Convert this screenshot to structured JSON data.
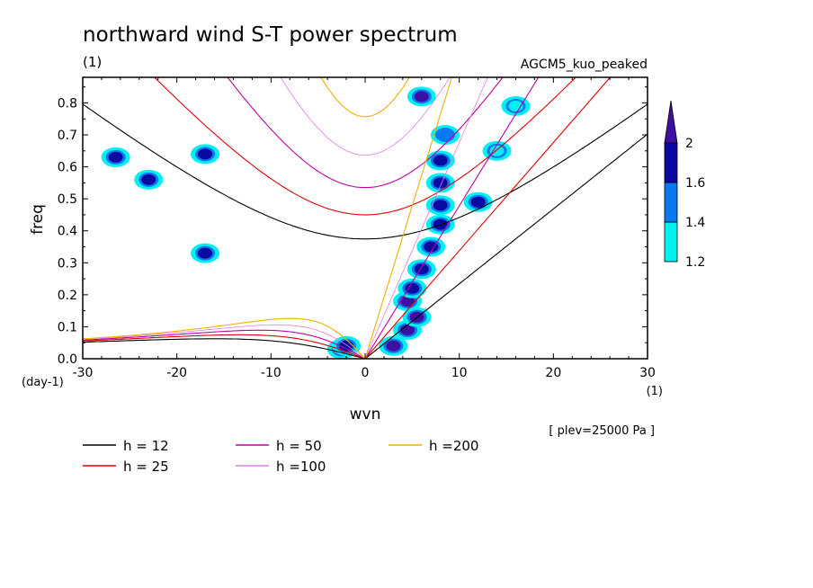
{
  "chart_data": {
    "type": "heatmap",
    "title": "northward wind S-T power spectrum",
    "title_unit": "(1)",
    "model_label": "AGCM5_kuo_peaked",
    "level_note": "[ plev=25000 Pa ]",
    "xlabel": "wvn",
    "ylabel": "freq",
    "x_unit": "(1)",
    "y_unit": "(day-1)",
    "xlim": [
      -30,
      30
    ],
    "ylim": [
      0,
      0.88
    ],
    "x_ticks": [
      -30,
      -20,
      -10,
      0,
      10,
      20,
      30
    ],
    "x_tick_labels": [
      "-30",
      "-20",
      "-10",
      "0",
      "10",
      "20",
      "30"
    ],
    "y_ticks": [
      0,
      0.1,
      0.2,
      0.3,
      0.4,
      0.5,
      0.6,
      0.7,
      0.8
    ],
    "y_tick_labels": [
      "0.0",
      "0.1",
      "0.2",
      "0.3",
      "0.4",
      "0.5",
      "0.6",
      "0.7",
      "0.8"
    ],
    "colorbar": {
      "levels": [
        1.2,
        1.4,
        1.6,
        2
      ],
      "labels": [
        "1.2",
        "1.4",
        "1.6",
        "2"
      ],
      "colors": [
        "#00f0f0",
        "#0a78f0",
        "#0a0aa0",
        "#3c10a0"
      ]
    },
    "dispersion_curves": [
      {
        "label": "h = 12",
        "h": 12,
        "color": "#000000"
      },
      {
        "label": "h = 25",
        "h": 25,
        "color": "#e00000"
      },
      {
        "label": "h = 50",
        "h": 50,
        "color": "#c000a0"
      },
      {
        "label": "h =100",
        "h": 100,
        "color": "#e080e0"
      },
      {
        "label": "h =200",
        "h": 200,
        "color": "#f0b000"
      }
    ],
    "power_regions": [
      {
        "wvn": -2.5,
        "freq": 0.03,
        "level": 2
      },
      {
        "wvn": -2.0,
        "freq": 0.04,
        "level": 1.6
      },
      {
        "wvn": 3.0,
        "freq": 0.04,
        "level": 2
      },
      {
        "wvn": 4.5,
        "freq": 0.09,
        "level": 2
      },
      {
        "wvn": 5.5,
        "freq": 0.13,
        "level": 2
      },
      {
        "wvn": 4.5,
        "freq": 0.18,
        "level": 2
      },
      {
        "wvn": 5.0,
        "freq": 0.22,
        "level": 1.6
      },
      {
        "wvn": 6.0,
        "freq": 0.28,
        "level": 1.6
      },
      {
        "wvn": 7.0,
        "freq": 0.35,
        "level": 1.6
      },
      {
        "wvn": 8.0,
        "freq": 0.42,
        "level": 1.6
      },
      {
        "wvn": 8.0,
        "freq": 0.48,
        "level": 1.6
      },
      {
        "wvn": 8.0,
        "freq": 0.55,
        "level": 1.6
      },
      {
        "wvn": 8.0,
        "freq": 0.62,
        "level": 1.6
      },
      {
        "wvn": 8.5,
        "freq": 0.7,
        "level": 1.4
      },
      {
        "wvn": 6.0,
        "freq": 0.82,
        "level": 2
      },
      {
        "wvn": 12.0,
        "freq": 0.49,
        "level": 1.6
      },
      {
        "wvn": 14.0,
        "freq": 0.65,
        "level": 1.2
      },
      {
        "wvn": 16.0,
        "freq": 0.79,
        "level": 1.2
      },
      {
        "wvn": -26.5,
        "freq": 0.63,
        "level": 1.6
      },
      {
        "wvn": -23.0,
        "freq": 0.56,
        "level": 1.6
      },
      {
        "wvn": -17.0,
        "freq": 0.64,
        "level": 1.6
      },
      {
        "wvn": -17.0,
        "freq": 0.33,
        "level": 1.6
      }
    ]
  }
}
